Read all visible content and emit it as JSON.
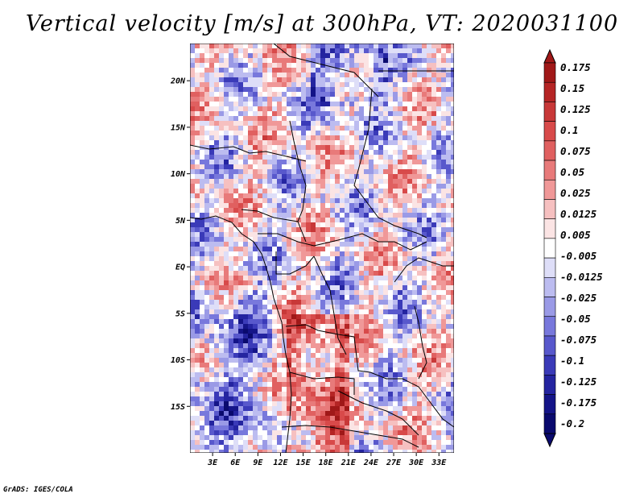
{
  "title": "Vertical velocity [m/s] at 300hPa, VT: 2020031100",
  "credit": "GrADS: IGES/COLA",
  "map": {
    "lon_range": [
      0,
      35
    ],
    "lat_range": [
      -20,
      24
    ],
    "lat_ticks": [
      "20N",
      "15N",
      "10N",
      "5N",
      "EQ",
      "5S",
      "10S",
      "15S"
    ],
    "lon_ticks": [
      "3E",
      "6E",
      "9E",
      "12E",
      "15E",
      "18E",
      "21E",
      "24E",
      "27E",
      "30E",
      "33E"
    ]
  },
  "colorbar": {
    "labels": [
      "0.175",
      "0.15",
      "0.125",
      "0.1",
      "0.075",
      "0.05",
      "0.025",
      "0.0125",
      "0.005",
      "-0.005",
      "-0.0125",
      "-0.025",
      "-0.05",
      "-0.075",
      "-0.1",
      "-0.125",
      "-0.175",
      "-0.2"
    ],
    "colors": [
      "#a01818",
      "#b52525",
      "#c83838",
      "#d84a4a",
      "#e06060",
      "#e87a7a",
      "#f09898",
      "#f6c0c0",
      "#fbe4e4",
      "#ffffff",
      "#dedef8",
      "#bcbcf0",
      "#9a9ae6",
      "#7878dc",
      "#5858cc",
      "#3a3ab8",
      "#2424a0",
      "#141488",
      "#0a0a6e"
    ]
  }
}
